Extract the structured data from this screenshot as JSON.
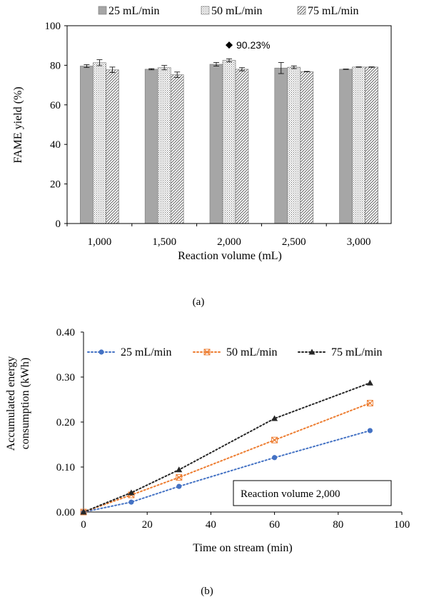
{
  "chart_data": [
    {
      "type": "bar",
      "panel_label": "(a)",
      "xlabel": "Reaction volume (mL)",
      "ylabel": "FAME yield (%)",
      "ylim": [
        0,
        100
      ],
      "yticks": [
        "0",
        "20",
        "40",
        "60",
        "80",
        "100"
      ],
      "categories": [
        "1,000",
        "1,500",
        "2,000",
        "2,500",
        "3,000"
      ],
      "legend_position": "top",
      "series": [
        {
          "name": "25 mL/min",
          "values": [
            79.6,
            78.0,
            80.5,
            78.6,
            78.0
          ],
          "errors": [
            0.7,
            0.3,
            0.9,
            2.8,
            0.1
          ]
        },
        {
          "name": "50 mL/min",
          "values": [
            81.3,
            78.8,
            82.5,
            79.0,
            79.1
          ],
          "errors": [
            1.5,
            1.1,
            0.8,
            0.7,
            0.1
          ]
        },
        {
          "name": "75 mL/min",
          "values": [
            77.7,
            75.2,
            78.0,
            76.8,
            79.1
          ],
          "errors": [
            1.4,
            1.4,
            0.8,
            0.1,
            0.1
          ]
        }
      ],
      "annotation": {
        "category": "2,000",
        "value": 90.23,
        "text": "90.23%"
      }
    },
    {
      "type": "line",
      "panel_label": "(b)",
      "xlabel": "Time on stream (min)",
      "ylabel_lines": [
        "Accumulated energy",
        "consumption (kWh)"
      ],
      "xlim": [
        0,
        100
      ],
      "ylim": [
        0,
        0.4
      ],
      "xticks": [
        "0",
        "20",
        "40",
        "60",
        "80",
        "100"
      ],
      "yticks": [
        "0.00",
        "0.10",
        "0.20",
        "0.30",
        "0.40"
      ],
      "legend_position": "top",
      "series": [
        {
          "name": "25 mL/min",
          "color": "#4472C4",
          "marker": "circle",
          "x": [
            0,
            15,
            30,
            60,
            90
          ],
          "y": [
            0.0,
            0.022,
            0.057,
            0.121,
            0.181
          ]
        },
        {
          "name": "50 mL/min",
          "color": "#ED7D31",
          "marker": "x-square",
          "x": [
            0,
            15,
            30,
            60,
            90
          ],
          "y": [
            0.0,
            0.038,
            0.077,
            0.16,
            0.242
          ]
        },
        {
          "name": "75 mL/min",
          "color": "#262626",
          "marker": "triangle",
          "x": [
            0,
            15,
            30,
            60,
            90
          ],
          "y": [
            0.0,
            0.043,
            0.094,
            0.208,
            0.287
          ]
        }
      ],
      "annotation_box": "Reaction volume 2,000"
    }
  ]
}
